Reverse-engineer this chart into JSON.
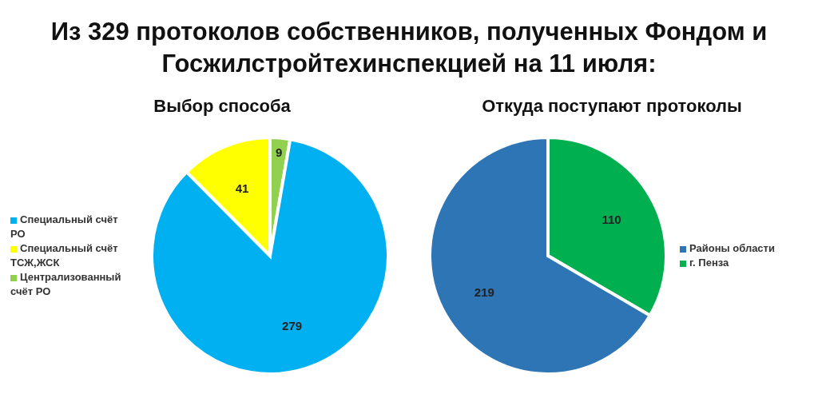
{
  "chart_data": [
    {
      "type": "pie",
      "title": "Из 329 протоколов собственников, полученных Фондом и Госжилстройтехинспекцией на 11 июля:",
      "subtitle": "Выбор способа",
      "categories": [
        "Централизованный счёт РО",
        "Специальный счёт РО",
        "Специальный счёт ТСЖ,ЖСК"
      ],
      "values": [
        9,
        279,
        41
      ],
      "colors": [
        "#92d050",
        "#00b0f0",
        "#ffff00"
      ],
      "data_labels": true,
      "legend": "left"
    },
    {
      "type": "pie",
      "title": "Откуда поступают протоколы",
      "categories": [
        "г. Пенза",
        "Районы области"
      ],
      "values": [
        110,
        219
      ],
      "colors": [
        "#00b050",
        "#2e75b6"
      ],
      "data_labels": true,
      "legend": "right"
    }
  ]
}
